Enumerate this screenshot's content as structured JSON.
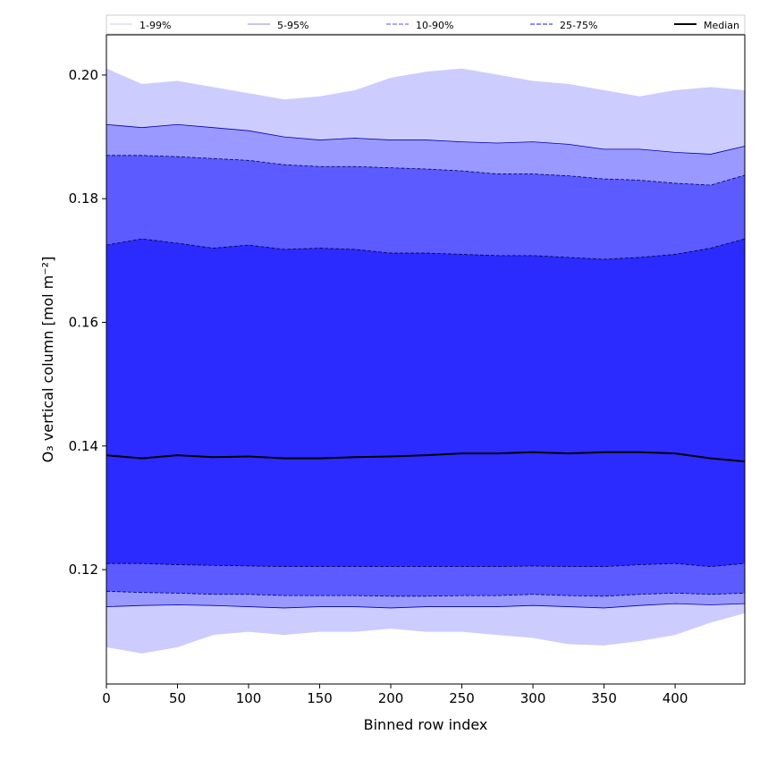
{
  "chart_data": {
    "type": "area",
    "xlabel": "Binned row index",
    "ylabel": "O₃ vertical column [mol m⁻²]",
    "xlim": [
      0,
      449
    ],
    "ylim": [
      0.1015,
      0.2065
    ],
    "xticks": [
      0,
      50,
      100,
      150,
      200,
      250,
      300,
      350,
      400
    ],
    "yticks": [
      0.12,
      0.14,
      0.16,
      0.18,
      0.2
    ],
    "ytick_labels": [
      "0.12",
      "0.14",
      "0.16",
      "0.18",
      "0.20"
    ],
    "grid": false,
    "legend_position": "top",
    "x": [
      0,
      25,
      50,
      75,
      100,
      125,
      150,
      175,
      200,
      225,
      250,
      275,
      300,
      325,
      350,
      375,
      400,
      425,
      449
    ],
    "bands": [
      {
        "name": "1-99%",
        "fill": "#ccccff",
        "edge": "#ccccff",
        "edge_style": "solid",
        "lower": [
          0.1075,
          0.1065,
          0.1075,
          0.1095,
          0.11,
          0.1095,
          0.11,
          0.11,
          0.1105,
          0.11,
          0.11,
          0.1095,
          0.109,
          0.108,
          0.1078,
          0.1085,
          0.1095,
          0.1115,
          0.113
        ],
        "upper": [
          0.201,
          0.1985,
          0.199,
          0.198,
          0.197,
          0.196,
          0.1965,
          0.1975,
          0.1995,
          0.2005,
          0.201,
          0.2,
          0.199,
          0.1985,
          0.1975,
          0.1965,
          0.1975,
          0.198,
          0.1975
        ]
      },
      {
        "name": "5-95%",
        "fill": "#9999ff",
        "edge": "#0000aa",
        "edge_style": "solid",
        "lower": [
          0.114,
          0.1142,
          0.1143,
          0.1142,
          0.114,
          0.1138,
          0.114,
          0.114,
          0.1138,
          0.114,
          0.114,
          0.114,
          0.1142,
          0.114,
          0.1138,
          0.1142,
          0.1145,
          0.1143,
          0.1145
        ],
        "upper": [
          0.192,
          0.1915,
          0.192,
          0.1915,
          0.191,
          0.19,
          0.1895,
          0.1898,
          0.1895,
          0.1895,
          0.1892,
          0.189,
          0.1892,
          0.1888,
          0.188,
          0.188,
          0.1875,
          0.1872,
          0.1885
        ]
      },
      {
        "name": "10-90%",
        "fill": "#5b5bff",
        "edge": "#000066",
        "edge_style": "dashed",
        "lower": [
          0.1165,
          0.1163,
          0.1162,
          0.116,
          0.116,
          0.1158,
          0.1158,
          0.1158,
          0.1157,
          0.1157,
          0.1158,
          0.1158,
          0.116,
          0.1158,
          0.1157,
          0.116,
          0.1162,
          0.116,
          0.1162
        ],
        "upper": [
          0.187,
          0.187,
          0.1868,
          0.1865,
          0.1862,
          0.1855,
          0.1852,
          0.1852,
          0.185,
          0.1848,
          0.1845,
          0.184,
          0.184,
          0.1837,
          0.1832,
          0.183,
          0.1825,
          0.1822,
          0.1838
        ]
      },
      {
        "name": "25-75%",
        "fill": "#2b2bff",
        "edge": "#000044",
        "edge_style": "dashed",
        "lower": [
          0.121,
          0.121,
          0.1208,
          0.1207,
          0.1206,
          0.1205,
          0.1205,
          0.1205,
          0.1205,
          0.1205,
          0.1205,
          0.1205,
          0.1206,
          0.1205,
          0.1205,
          0.1208,
          0.121,
          0.1205,
          0.121
        ],
        "upper": [
          0.1725,
          0.1735,
          0.1728,
          0.172,
          0.1725,
          0.1718,
          0.172,
          0.1718,
          0.1712,
          0.1712,
          0.171,
          0.1708,
          0.1708,
          0.1705,
          0.1702,
          0.1705,
          0.171,
          0.172,
          0.1735
        ]
      }
    ],
    "median": {
      "name": "Median",
      "color": "#000000",
      "values": [
        0.1385,
        0.138,
        0.1385,
        0.1382,
        0.1383,
        0.138,
        0.138,
        0.1382,
        0.1383,
        0.1385,
        0.1388,
        0.1388,
        0.139,
        0.1388,
        0.139,
        0.139,
        0.1388,
        0.138,
        0.1375
      ]
    },
    "legend": [
      "1-99%",
      "5-95%",
      "10-90%",
      "25-75%",
      "Median"
    ]
  }
}
